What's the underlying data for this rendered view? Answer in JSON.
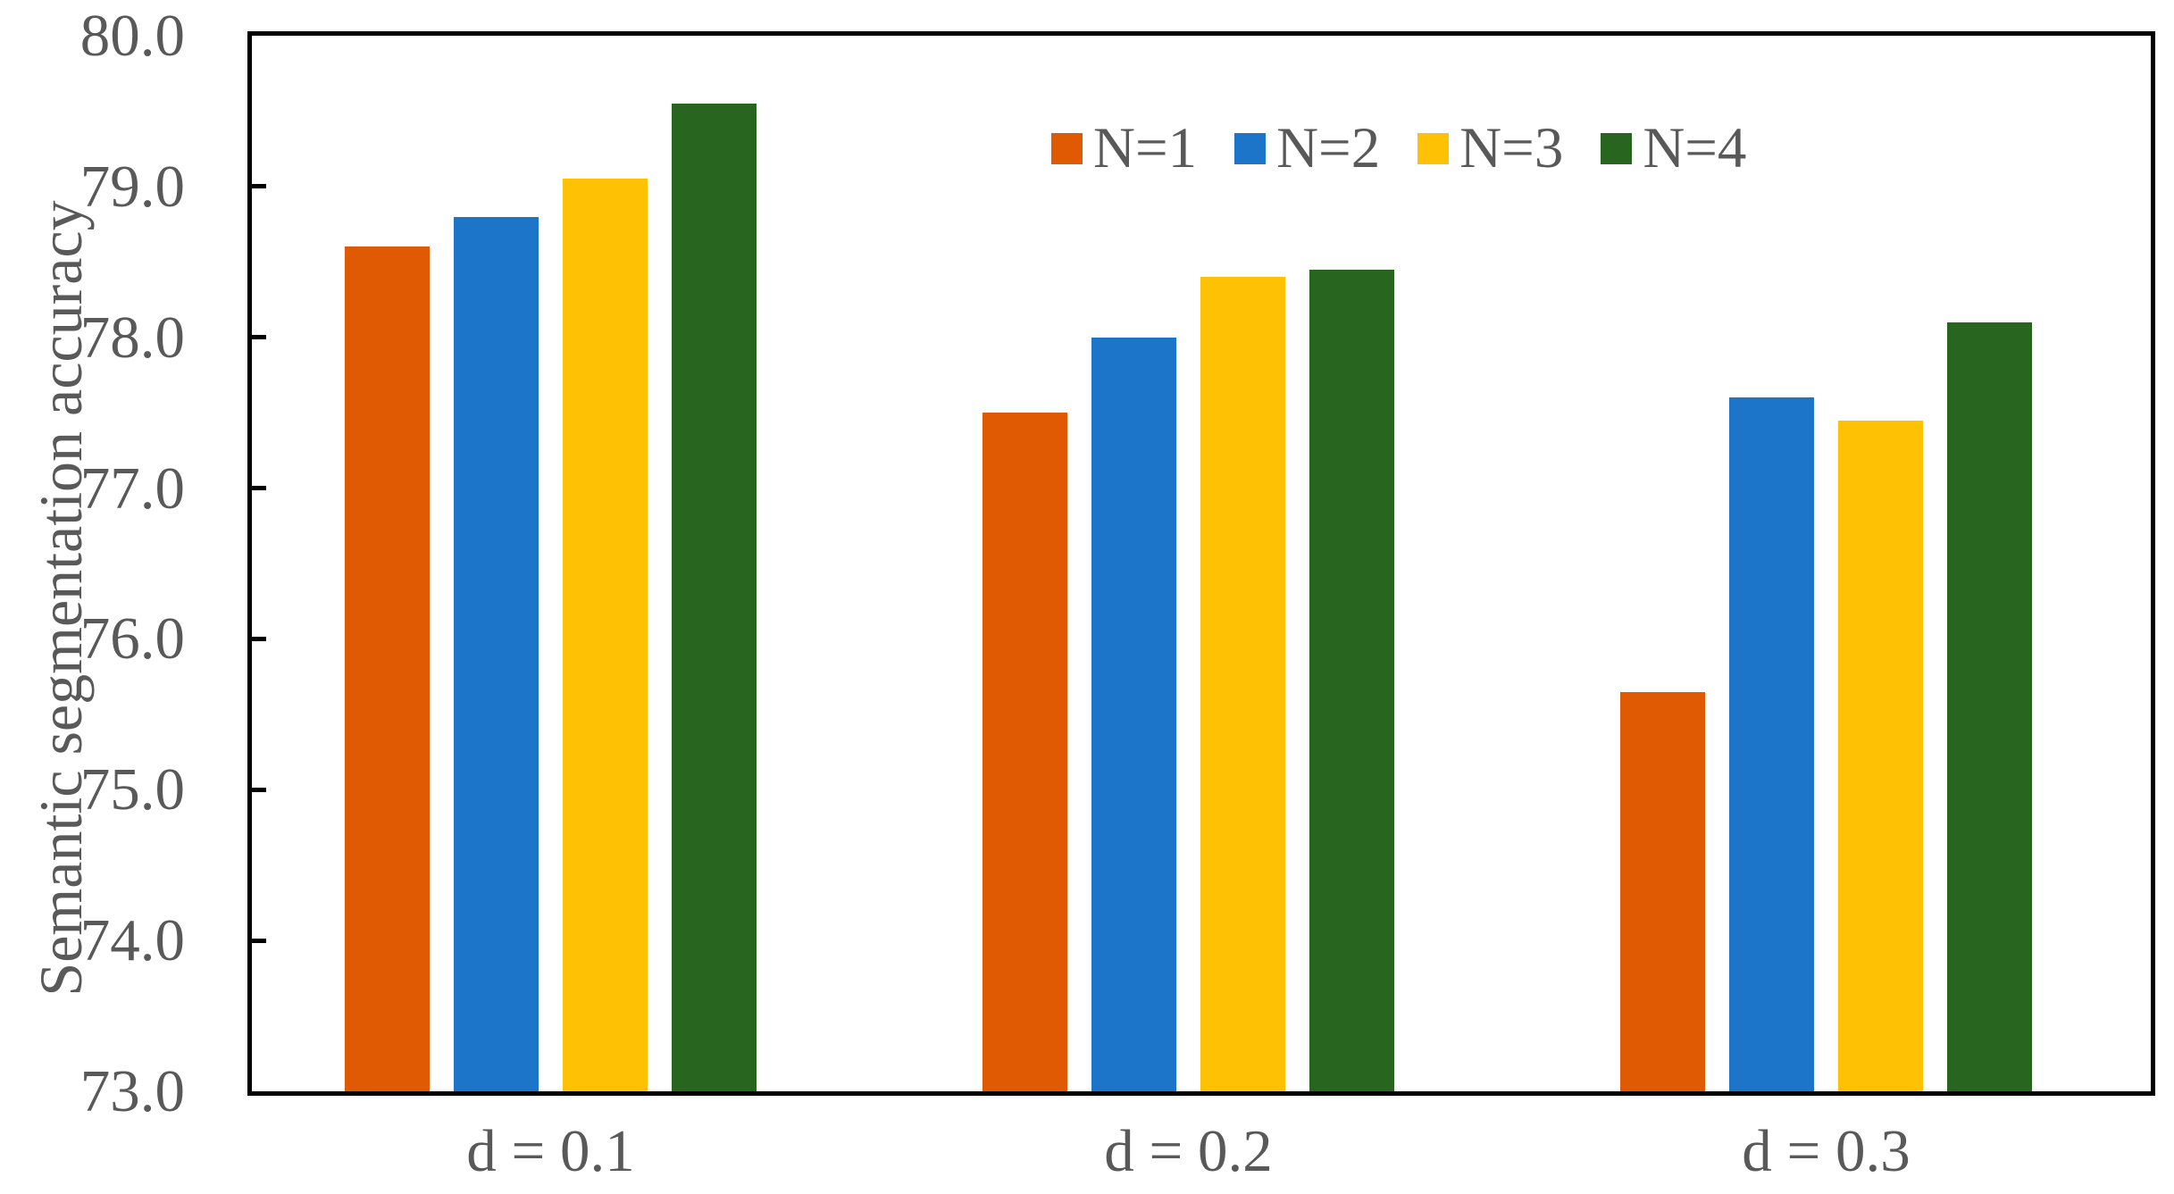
{
  "chart_data": {
    "type": "bar",
    "title": "",
    "xlabel": "",
    "ylabel": "Semantic segmentation accuracy",
    "categories": [
      "d = 0.1",
      "d = 0.2",
      "d = 0.3"
    ],
    "series": [
      {
        "name": "N=1",
        "color": "#E05A04",
        "values": [
          78.6,
          77.5,
          75.65
        ]
      },
      {
        "name": "N=2",
        "color": "#1C75C8",
        "values": [
          78.8,
          78.0,
          77.6
        ]
      },
      {
        "name": "N=3",
        "color": "#FFC103",
        "values": [
          79.05,
          78.4,
          77.45
        ]
      },
      {
        "name": "N=4",
        "color": "#286620",
        "values": [
          79.55,
          78.45,
          78.1
        ]
      }
    ],
    "ylim": [
      73.0,
      80.0
    ],
    "ytick_step": 1.0,
    "ytick_labels": [
      "80.0",
      "79.0",
      "78.0",
      "77.0",
      "76.0",
      "75.0",
      "74.0",
      "73.0"
    ],
    "grid": false,
    "legend_position": "top-center-inside",
    "bar_edge": "none"
  },
  "colors": {
    "text": "#595959",
    "axis": "#000000",
    "background": "#FFFFFF"
  }
}
